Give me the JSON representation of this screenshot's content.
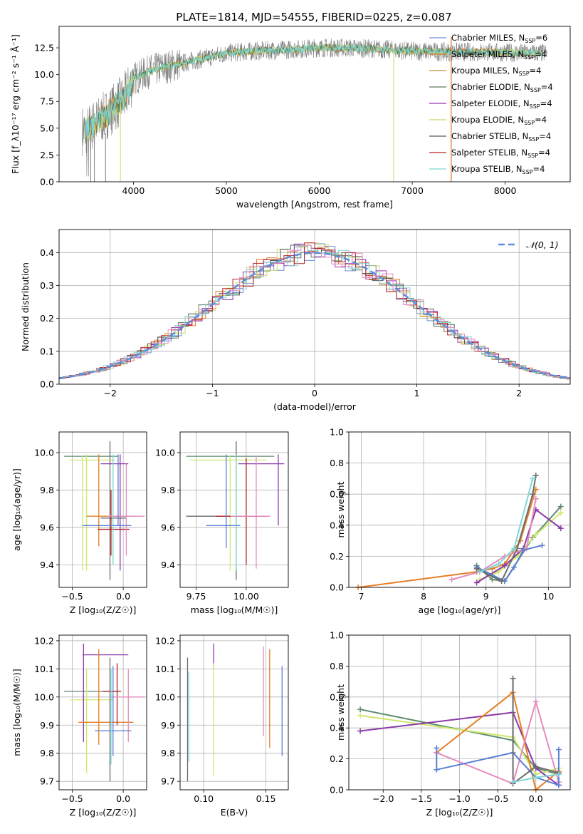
{
  "figure_title": "PLATE=1814, MJD=54555, FIBERID=0225, z=0.087",
  "colors": {
    "series": [
      "#6a8fd6",
      "#e07828",
      "#c88a3a",
      "#5a7d5a",
      "#9a35b0",
      "#ccd86a",
      "#5a5a5a",
      "#b82020",
      "#7fd6d6"
    ],
    "obs": "#808080",
    "gaussian": "#5b8fd9",
    "pink": "#e68bbd",
    "lime": "#cfe870",
    "green": "#5e8a6e",
    "purple": "#8b3aa8",
    "orange": "#e67e22",
    "blue": "#5b7fd4",
    "gray": "#6b6b6b",
    "cyan": "#7fd6d6",
    "red": "#b02020"
  },
  "chart_data": [
    {
      "id": "spectrum",
      "type": "line",
      "title": "PLATE=1814, MJD=54555, FIBERID=0225, z=0.087",
      "xlabel": "wavelength [Angstrom, rest frame]",
      "ylabel": "Flux [f_λ10⁻¹⁷ erg cm⁻² s⁻¹ Å⁻¹]",
      "xlim": [
        3200,
        8700
      ],
      "ylim": [
        0,
        14.5
      ],
      "xticks": [
        4000,
        5000,
        6000,
        7000,
        8000
      ],
      "yticks": [
        0.0,
        2.5,
        5.0,
        7.5,
        10.0,
        12.5
      ],
      "ytick_labels": [
        "0.0",
        "2.5",
        "5.0",
        "7.5",
        "10.0",
        "12.5"
      ],
      "grid": false,
      "legend": [
        {
          "label": "Chabrier MILES, N",
          "sub": "SSP",
          "suffix": "=6"
        },
        {
          "label": "Salpeter MILES, N",
          "sub": "SSP",
          "suffix": "=4"
        },
        {
          "label": "Kroupa MILES, N",
          "sub": "SSP",
          "suffix": "=4"
        },
        {
          "label": "Chabrier ELODIE, N",
          "sub": "SSP",
          "suffix": "=4"
        },
        {
          "label": "Salpeter ELODIE, N",
          "sub": "SSP",
          "suffix": "=4"
        },
        {
          "label": "Kroupa ELODIE, N",
          "sub": "SSP",
          "suffix": "=4"
        },
        {
          "label": "Chabrier STELIB, N",
          "sub": "SSP",
          "suffix": "=4"
        },
        {
          "label": "Salpeter STELIB, N",
          "sub": "SSP",
          "suffix": "=4"
        },
        {
          "label": "Kroupa STELIB, N",
          "sub": "SSP",
          "suffix": "=4"
        }
      ],
      "legend_position": "right",
      "continuum": {
        "x": [
          3500,
          3700,
          3900,
          4000,
          4200,
          4500,
          4800,
          5000,
          5300,
          5600,
          6000,
          6300,
          6600,
          7000,
          7400,
          7800,
          8200,
          8400
        ],
        "y": [
          4.8,
          6.2,
          7.8,
          9.6,
          10.4,
          11.0,
          11.6,
          12.0,
          12.2,
          12.3,
          12.5,
          12.5,
          12.4,
          12.2,
          12.1,
          12.1,
          12.0,
          12.0
        ]
      }
    },
    {
      "id": "residuals",
      "type": "line",
      "xlabel": "(data-model)/error",
      "ylabel": "Normed distribution",
      "xlim": [
        -2.5,
        2.5
      ],
      "ylim": [
        0,
        0.47
      ],
      "xticks": [
        -2,
        -1,
        0,
        1,
        2
      ],
      "xtick_labels": [
        "−2",
        "−1",
        "0",
        "1",
        "2"
      ],
      "yticks": [
        0.0,
        0.1,
        0.2,
        0.3,
        0.4
      ],
      "ytick_labels": [
        "0.0",
        "0.1",
        "0.2",
        "0.3",
        "0.4"
      ],
      "grid": true,
      "legend": [
        {
          "label": "𝒩(0, 1)"
        }
      ],
      "legend_position": "top-right",
      "bin_width": 0.1
    },
    {
      "id": "age_vs_Z",
      "type": "scatter",
      "xlabel": "Z [log₁₀(Z/Z☉)]",
      "ylabel": "age  [log₁₀(age/yr)]",
      "xlim": [
        -0.63,
        0.23
      ],
      "ylim": [
        9.28,
        10.11
      ],
      "xticks": [
        -0.5,
        0.0
      ],
      "xtick_labels": [
        "−0.5",
        "0.0"
      ],
      "yticks": [
        9.4,
        9.6,
        9.8,
        10.0
      ],
      "ytick_labels": [
        "9.4",
        "9.6",
        "9.8",
        "10.0"
      ],
      "grid": true,
      "points": [
        {
          "x": -0.4,
          "y": 9.98,
          "xlo": -0.58,
          "xhi": -0.05,
          "ylo": 9.98,
          "yhi": 9.98,
          "c": "green"
        },
        {
          "x": -0.4,
          "y": 9.96,
          "xlo": -0.53,
          "xhi": -0.08,
          "ylo": 9.37,
          "yhi": 9.98,
          "c": "lime"
        },
        {
          "x": -0.36,
          "y": 9.98,
          "xlo": -0.36,
          "xhi": -0.36,
          "ylo": 9.37,
          "yhi": 9.99,
          "c": "lime"
        },
        {
          "x": -0.24,
          "y": 9.66,
          "xlo": -0.36,
          "xhi": 0.11,
          "ylo": 9.5,
          "yhi": 9.99,
          "c": "orange"
        },
        {
          "x": -0.13,
          "y": 9.65,
          "xlo": -0.22,
          "xhi": 0.03,
          "ylo": 9.32,
          "yhi": 10.06,
          "c": "gray"
        },
        {
          "x": -0.12,
          "y": 9.59,
          "xlo": -0.25,
          "xhi": 0.06,
          "ylo": 9.45,
          "yhi": 9.8,
          "c": "red"
        },
        {
          "x": -0.03,
          "y": 9.94,
          "xlo": -0.22,
          "xhi": 0.05,
          "ylo": 9.37,
          "yhi": 9.99,
          "c": "purple"
        },
        {
          "x": 0.03,
          "y": 9.66,
          "xlo": -0.15,
          "xhi": 0.21,
          "ylo": 9.45,
          "yhi": 9.94,
          "c": "pink"
        },
        {
          "x": -0.05,
          "y": 9.61,
          "xlo": -0.4,
          "xhi": 0.08,
          "ylo": 9.61,
          "yhi": 9.99,
          "c": "blue"
        },
        {
          "x": -0.1,
          "y": 9.72,
          "xlo": -0.1,
          "xhi": -0.1,
          "ylo": 9.4,
          "yhi": 9.99,
          "c": "cyan"
        }
      ]
    },
    {
      "id": "age_vs_mass",
      "type": "scatter",
      "xlabel": "mass [log₁₀(M/M☉)]",
      "ylabel": "",
      "xlim": [
        9.67,
        10.21
      ],
      "ylim": [
        9.28,
        10.11
      ],
      "xticks": [
        9.75,
        10.0
      ],
      "xtick_labels": [
        "9.75",
        "10.00"
      ],
      "yticks": [
        9.4,
        9.6,
        9.8,
        10.0
      ],
      "ytick_labels": [
        "9.4",
        "9.6",
        "9.8",
        "10.0"
      ],
      "grid": true,
      "points": [
        {
          "x": 10.02,
          "y": 9.98,
          "xlo": 9.7,
          "xhi": 10.14,
          "ylo": 9.98,
          "yhi": 9.98,
          "c": "green"
        },
        {
          "x": 9.92,
          "y": 9.96,
          "xlo": 9.72,
          "xhi": 10.1,
          "ylo": 9.37,
          "yhi": 9.98,
          "c": "lime"
        },
        {
          "x": 10.16,
          "y": 9.94,
          "xlo": 9.96,
          "xhi": 10.19,
          "ylo": 9.61,
          "yhi": 9.99,
          "c": "purple"
        },
        {
          "x": 9.95,
          "y": 9.66,
          "xlo": 9.7,
          "xhi": 10.11,
          "ylo": 9.32,
          "yhi": 10.06,
          "c": "gray"
        },
        {
          "x": 10.0,
          "y": 9.66,
          "xlo": 9.85,
          "xhi": 10.1,
          "ylo": 9.4,
          "yhi": 9.97,
          "c": "red"
        },
        {
          "x": 9.9,
          "y": 9.61,
          "xlo": 9.8,
          "xhi": 9.97,
          "ylo": 9.49,
          "yhi": 9.99,
          "c": "blue"
        },
        {
          "x": 10.05,
          "y": 9.66,
          "xlo": 9.92,
          "xhi": 10.12,
          "ylo": 9.38,
          "yhi": 9.98,
          "c": "pink"
        },
        {
          "x": 9.95,
          "y": 9.55,
          "xlo": 9.95,
          "xhi": 9.95,
          "ylo": 9.37,
          "yhi": 9.99,
          "c": "cyan"
        }
      ]
    },
    {
      "id": "weight_vs_age",
      "type": "line",
      "xlabel": "age  [log₁₀(age/yr)]",
      "ylabel": "mass weight",
      "xlim": [
        6.8,
        10.35
      ],
      "ylim": [
        0,
        1.0
      ],
      "xticks": [
        7,
        8,
        9,
        10
      ],
      "xtick_labels": [
        "7",
        "8",
        "9",
        "10"
      ],
      "yticks": [
        0.0,
        0.2,
        0.4,
        0.6,
        0.8,
        1.0
      ],
      "ytick_labels": [
        "0.0",
        "0.2",
        "0.4",
        "0.6",
        "0.8",
        "1.0"
      ],
      "grid": true,
      "series": [
        {
          "c": "orange",
          "x": [
            6.95,
            8.85,
            9.1,
            9.3,
            9.55,
            9.8
          ],
          "y": [
            0.0,
            0.1,
            0.12,
            0.15,
            0.3,
            0.63
          ]
        },
        {
          "c": "green",
          "x": [
            8.85,
            9.1,
            9.3,
            9.75,
            10.2
          ],
          "y": [
            0.14,
            0.05,
            0.04,
            0.32,
            0.52
          ]
        },
        {
          "c": "lime",
          "x": [
            8.9,
            9.2,
            9.5,
            9.8,
            10.2
          ],
          "y": [
            0.05,
            0.1,
            0.2,
            0.34,
            0.48
          ]
        },
        {
          "c": "purple",
          "x": [
            8.85,
            9.3,
            9.6,
            9.8,
            10.2
          ],
          "y": [
            0.03,
            0.14,
            0.25,
            0.5,
            0.38
          ]
        },
        {
          "c": "pink",
          "x": [
            8.45,
            8.9,
            9.3,
            9.65,
            9.8
          ],
          "y": [
            0.05,
            0.1,
            0.2,
            0.25,
            0.57
          ]
        },
        {
          "c": "blue",
          "x": [
            8.85,
            9.3,
            9.45,
            9.6,
            9.9
          ],
          "y": [
            0.13,
            0.04,
            0.13,
            0.24,
            0.27
          ]
        },
        {
          "c": "gray",
          "x": [
            8.85,
            9.25,
            9.5,
            9.75,
            9.8
          ],
          "y": [
            0.12,
            0.04,
            0.25,
            0.6,
            0.72
          ]
        },
        {
          "c": "cyan",
          "x": [
            8.9,
            9.2,
            9.45,
            9.75
          ],
          "y": [
            0.1,
            0.15,
            0.25,
            0.7
          ]
        }
      ]
    },
    {
      "id": "mass_vs_Z",
      "type": "scatter",
      "xlabel": "Z [log₁₀(Z/Z☉)]",
      "ylabel": "mass [log₁₀(M/M☉)]",
      "xlim": [
        -0.63,
        0.23
      ],
      "ylim": [
        9.67,
        10.22
      ],
      "xticks": [
        -0.5,
        0.0
      ],
      "xtick_labels": [
        "−0.5",
        "0.0"
      ],
      "yticks": [
        9.7,
        9.8,
        9.9,
        10.0,
        10.1,
        10.2
      ],
      "ytick_labels": [
        "9.7",
        "9.8",
        "9.9",
        "10.0",
        "10.1",
        "10.2"
      ],
      "grid": true,
      "points": [
        {
          "x": -0.4,
          "y": 10.02,
          "xlo": -0.58,
          "xhi": -0.05,
          "ylo": 10.02,
          "yhi": 10.02,
          "c": "green"
        },
        {
          "x": -0.36,
          "y": 9.99,
          "xlo": -0.52,
          "xhi": -0.1,
          "ylo": 9.73,
          "yhi": 10.1,
          "c": "lime"
        },
        {
          "x": -0.39,
          "y": 10.15,
          "xlo": -0.4,
          "xhi": 0.05,
          "ylo": 9.84,
          "yhi": 10.19,
          "c": "purple"
        },
        {
          "x": -0.24,
          "y": 9.91,
          "xlo": -0.44,
          "xhi": 0.1,
          "ylo": 9.83,
          "yhi": 10.17,
          "c": "orange"
        },
        {
          "x": -0.13,
          "y": 10.02,
          "xlo": -0.2,
          "xhi": -0.03,
          "ylo": 9.7,
          "yhi": 10.14,
          "c": "gray"
        },
        {
          "x": -0.06,
          "y": 10.02,
          "xlo": -0.2,
          "xhi": -0.02,
          "ylo": 9.9,
          "yhi": 10.12,
          "c": "red"
        },
        {
          "x": 0.05,
          "y": 10.0,
          "xlo": -0.13,
          "xhi": 0.21,
          "ylo": 9.84,
          "yhi": 10.1,
          "c": "pink"
        },
        {
          "x": -0.1,
          "y": 9.88,
          "xlo": -0.28,
          "xhi": 0.08,
          "ylo": 9.79,
          "yhi": 10.11,
          "c": "blue"
        },
        {
          "x": -0.12,
          "y": 9.9,
          "xlo": -0.12,
          "xhi": -0.12,
          "ylo": 9.76,
          "yhi": 10.1,
          "c": "cyan"
        }
      ]
    },
    {
      "id": "mass_vs_ebv",
      "type": "scatter",
      "xlabel": "E(B-V)",
      "ylabel": "",
      "xlim": [
        0.081,
        0.168
      ],
      "ylim": [
        9.67,
        10.22
      ],
      "xticks": [
        0.1,
        0.15
      ],
      "xtick_labels": [
        "0.10",
        "0.15"
      ],
      "yticks": [
        9.7,
        9.8,
        9.9,
        10.0,
        10.1,
        10.2
      ],
      "ytick_labels": [
        "9.7",
        "9.8",
        "9.9",
        "10.0",
        "10.1",
        "10.2"
      ],
      "grid": true,
      "points": [
        {
          "x": 0.087,
          "y": 9.93,
          "xlo": 0.087,
          "xhi": 0.087,
          "ylo": 9.7,
          "yhi": 10.14,
          "c": "gray"
        },
        {
          "x": 0.088,
          "y": 9.95,
          "xlo": 0.088,
          "xhi": 0.088,
          "ylo": 9.77,
          "yhi": 10.09,
          "c": "cyan"
        },
        {
          "x": 0.108,
          "y": 10.15,
          "xlo": 0.108,
          "xhi": 0.108,
          "ylo": 10.1,
          "yhi": 10.19,
          "c": "purple"
        },
        {
          "x": 0.108,
          "y": 9.95,
          "xlo": 0.108,
          "xhi": 0.108,
          "ylo": 9.72,
          "yhi": 10.12,
          "c": "lime"
        },
        {
          "x": 0.148,
          "y": 10.0,
          "xlo": 0.148,
          "xhi": 0.148,
          "ylo": 9.86,
          "yhi": 10.18,
          "c": "pink"
        },
        {
          "x": 0.153,
          "y": 10.0,
          "xlo": 0.153,
          "xhi": 0.153,
          "ylo": 9.82,
          "yhi": 10.17,
          "c": "orange"
        },
        {
          "x": 0.163,
          "y": 9.95,
          "xlo": 0.163,
          "xhi": 0.163,
          "ylo": 9.79,
          "yhi": 10.11,
          "c": "blue"
        }
      ]
    },
    {
      "id": "weight_vs_Z",
      "type": "line",
      "xlabel": "Z [log₁₀(Z/Z☉)]",
      "ylabel": "mass weight",
      "xlim": [
        -2.45,
        0.45
      ],
      "ylim": [
        0,
        1.0
      ],
      "xticks": [
        -2.0,
        -1.5,
        -1.0,
        -0.5,
        0.0
      ],
      "xtick_labels": [
        "−2.0",
        "−1.5",
        "−1.0",
        "−0.5",
        "0.0"
      ],
      "yticks": [
        0.0,
        0.2,
        0.4,
        0.6,
        0.8,
        1.0
      ],
      "ytick_labels": [
        "0.0",
        "0.2",
        "0.4",
        "0.6",
        "0.8",
        "1.0"
      ],
      "grid": true,
      "series": [
        {
          "c": "green",
          "x": [
            -2.3,
            -0.3,
            0.0,
            0.3
          ],
          "y": [
            0.52,
            0.32,
            0.14,
            0.1
          ]
        },
        {
          "c": "lime",
          "x": [
            -2.3,
            -0.3,
            0.0,
            0.3
          ],
          "y": [
            0.48,
            0.34,
            0.1,
            0.14
          ]
        },
        {
          "c": "purple",
          "x": [
            -2.3,
            -0.3,
            0.0,
            0.3
          ],
          "y": [
            0.38,
            0.5,
            0.14,
            0.03
          ]
        },
        {
          "c": "orange",
          "x": [
            -1.3,
            -0.3,
            0.0,
            0.3
          ],
          "y": [
            0.24,
            0.63,
            0.0,
            0.12
          ]
        },
        {
          "c": "pink",
          "x": [
            -1.3,
            -0.3,
            0.0,
            0.3
          ],
          "y": [
            0.24,
            0.04,
            0.57,
            0.05
          ]
        },
        {
          "c": "blue",
          "x": [
            -1.3,
            -1.3,
            -0.3,
            0.0,
            0.3,
            0.3
          ],
          "y": [
            0.27,
            0.13,
            0.24,
            0.08,
            0.03,
            0.26
          ]
        },
        {
          "c": "gray",
          "x": [
            -0.3,
            -0.3,
            0.0,
            0.3
          ],
          "y": [
            0.72,
            0.04,
            0.15,
            0.11
          ]
        },
        {
          "c": "cyan",
          "x": [
            -0.3,
            0.0,
            0.3
          ],
          "y": [
            0.05,
            0.08,
            0.1
          ]
        }
      ]
    }
  ]
}
